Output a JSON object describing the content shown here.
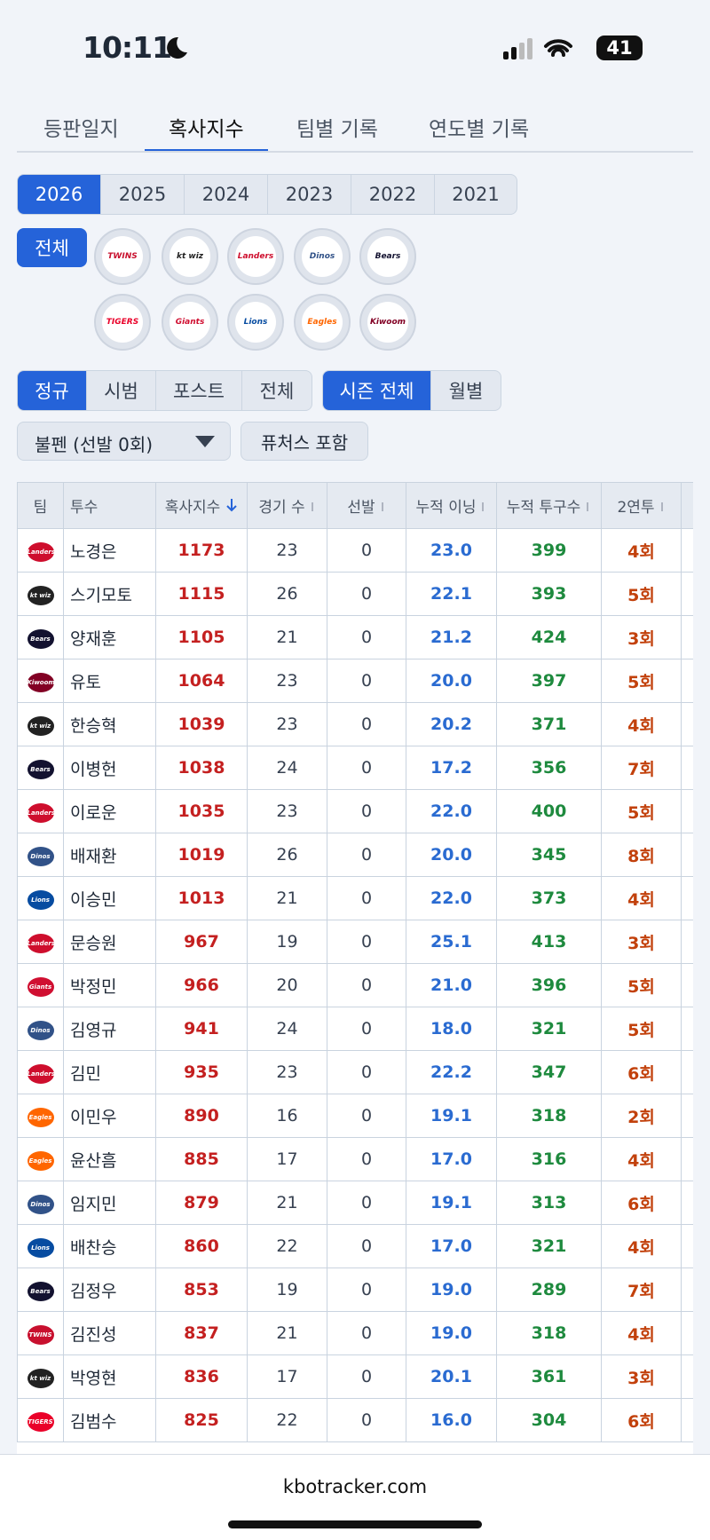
{
  "status_bar": {
    "time": "10:11",
    "battery": "41"
  },
  "tabs": {
    "items": [
      "등판일지",
      "혹사지수",
      "팀별 기록",
      "연도별 기록"
    ],
    "active": 1
  },
  "years": {
    "items": [
      "2026",
      "2025",
      "2024",
      "2023",
      "2022",
      "2021"
    ],
    "active": 0
  },
  "team_filter": {
    "all": "전체",
    "logos": [
      {
        "label": "TWINS",
        "color": "#c8102e"
      },
      {
        "label": "kt wiz",
        "color": "#222222"
      },
      {
        "label": "Landers",
        "color": "#ce0e2d"
      },
      {
        "label": "Dinos",
        "color": "#315288"
      },
      {
        "label": "Bears",
        "color": "#131230"
      },
      {
        "label": "TIGERS",
        "color": "#ea0029"
      },
      {
        "label": "Giants",
        "color": "#d00f31"
      },
      {
        "label": "Lions",
        "color": "#074ca1"
      },
      {
        "label": "Eagles",
        "color": "#ff6600"
      },
      {
        "label": "Kiwoom",
        "color": "#820024"
      }
    ]
  },
  "season_type": {
    "items": [
      "정규",
      "시범",
      "포스트",
      "전체"
    ],
    "active": 0
  },
  "period": {
    "items": [
      "시즌 전체",
      "월별"
    ],
    "active": 0
  },
  "dropdown": "불펜 (선발 0회)",
  "futures_button": "퓨처스 포함",
  "table": {
    "headers": [
      "팀",
      "투수",
      "혹사지수",
      "경기 수",
      "선발",
      "누적 이닝",
      "누적 투구수",
      "2연투"
    ],
    "rows": [
      [
        "Landers",
        "노경은",
        1173,
        23,
        0,
        "23.0",
        399,
        "4회"
      ],
      [
        "kt wiz",
        "스기모토",
        1115,
        26,
        0,
        "22.1",
        393,
        "5회"
      ],
      [
        "Bears",
        "양재훈",
        1105,
        21,
        0,
        "21.2",
        424,
        "3회"
      ],
      [
        "Kiwoom",
        "유토",
        1064,
        23,
        0,
        "20.0",
        397,
        "5회"
      ],
      [
        "kt wiz",
        "한승혁",
        1039,
        23,
        0,
        "20.2",
        371,
        "4회"
      ],
      [
        "Bears",
        "이병헌",
        1038,
        24,
        0,
        "17.2",
        356,
        "7회"
      ],
      [
        "Landers",
        "이로운",
        1035,
        23,
        0,
        "22.0",
        400,
        "5회"
      ],
      [
        "Dinos",
        "배재환",
        1019,
        26,
        0,
        "20.0",
        345,
        "8회"
      ],
      [
        "Lions",
        "이승민",
        1013,
        21,
        0,
        "22.0",
        373,
        "4회"
      ],
      [
        "Landers",
        "문승원",
        967,
        19,
        0,
        "25.1",
        413,
        "3회"
      ],
      [
        "Giants",
        "박정민",
        966,
        20,
        0,
        "21.0",
        396,
        "5회"
      ],
      [
        "Dinos",
        "김영규",
        941,
        24,
        0,
        "18.0",
        321,
        "5회"
      ],
      [
        "Landers",
        "김민",
        935,
        23,
        0,
        "22.2",
        347,
        "6회"
      ],
      [
        "Eagles",
        "이민우",
        890,
        16,
        0,
        "19.1",
        318,
        "2회"
      ],
      [
        "Eagles",
        "윤산흠",
        885,
        17,
        0,
        "17.0",
        316,
        "4회"
      ],
      [
        "Dinos",
        "임지민",
        879,
        21,
        0,
        "19.1",
        313,
        "6회"
      ],
      [
        "Lions",
        "배찬승",
        860,
        22,
        0,
        "17.0",
        321,
        "4회"
      ],
      [
        "Bears",
        "김정우",
        853,
        19,
        0,
        "19.0",
        289,
        "7회"
      ],
      [
        "TWINS",
        "김진성",
        837,
        21,
        0,
        "19.0",
        318,
        "4회"
      ],
      [
        "kt wiz",
        "박영현",
        836,
        17,
        0,
        "20.1",
        361,
        "3회"
      ],
      [
        "TIGERS",
        "김범수",
        825,
        22,
        0,
        "16.0",
        304,
        "6회"
      ]
    ]
  },
  "footer": "kbotracker.com"
}
